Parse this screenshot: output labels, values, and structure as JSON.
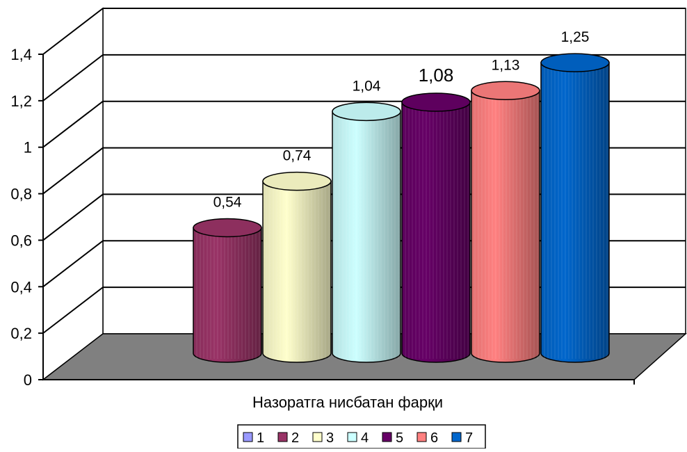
{
  "chart_data": {
    "type": "bar",
    "style": "3d-cylinder",
    "xlabel": "Назоратга нисбатан фарқи",
    "ylabel": "",
    "ylim": [
      0,
      1.4
    ],
    "yticks": [
      "0",
      "0,2",
      "0,4",
      "0,6",
      "0,8",
      "1",
      "1,2",
      "1,4"
    ],
    "ytick_values": [
      0,
      0.2,
      0.4,
      0.6,
      0.8,
      1.0,
      1.2,
      1.4
    ],
    "grid": true,
    "legend_position": "bottom",
    "series": [
      {
        "name": "1",
        "value": null,
        "label": "",
        "color": "#9999ff"
      },
      {
        "name": "2",
        "value": 0.54,
        "label": "0,54",
        "color": "#993366"
      },
      {
        "name": "3",
        "value": 0.74,
        "label": "0,74",
        "color": "#ffffcc"
      },
      {
        "name": "4",
        "value": 1.04,
        "label": "1,04",
        "color": "#ccffff"
      },
      {
        "name": "5",
        "value": 1.08,
        "label": "1,08",
        "color": "#660066"
      },
      {
        "name": "6",
        "value": 1.13,
        "label": "1,13",
        "color": "#ff8080"
      },
      {
        "name": "7",
        "value": 1.25,
        "label": "1,25",
        "color": "#0066cc"
      }
    ]
  }
}
